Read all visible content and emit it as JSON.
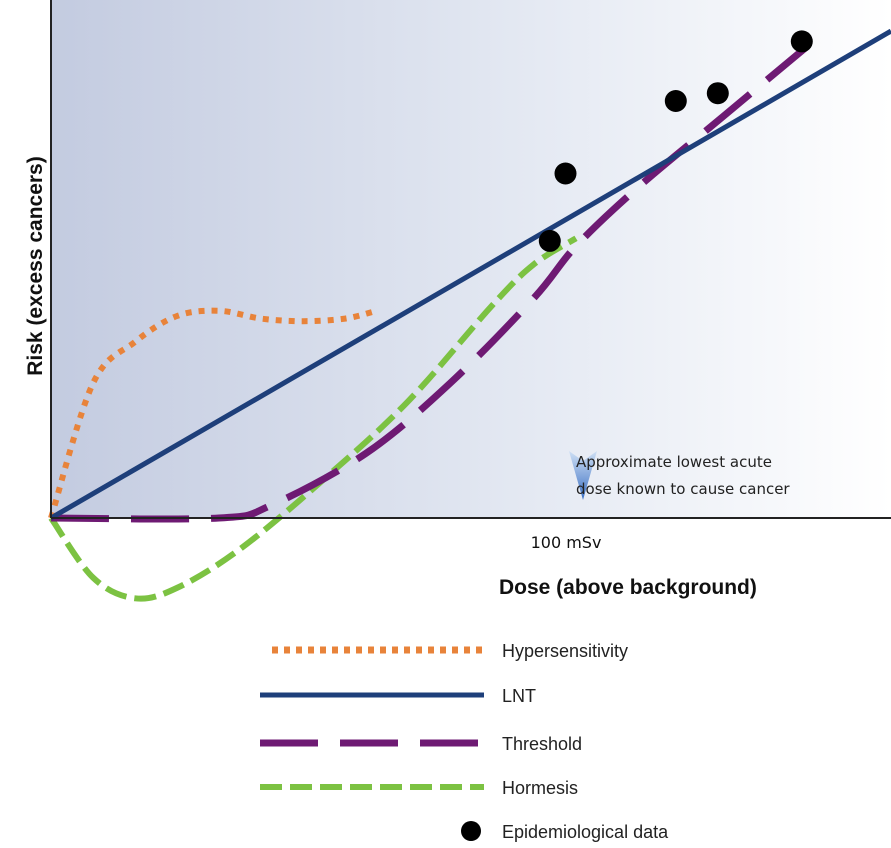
{
  "chart_data": {
    "type": "line",
    "title": "",
    "xlabel": "Dose (above background)",
    "ylabel": "Risk (excess cancers)",
    "x_ticks": [
      {
        "x": 100,
        "label": "100 mSv"
      }
    ],
    "xlim": [
      0,
      160
    ],
    "ylim": [
      -30,
      190
    ],
    "annotation": {
      "lines": [
        "Approximate lowest acute",
        "dose known to cause cancer"
      ],
      "x": 100,
      "marker": "down-arrow"
    },
    "series": [
      {
        "name": "Hypersensitivity",
        "style": "dotted",
        "color": "#e8833a",
        "x": [
          0,
          8,
          16,
          24,
          32,
          40,
          48,
          56,
          62
        ],
        "y": [
          0,
          52,
          68,
          78,
          80,
          77,
          76,
          77,
          80
        ]
      },
      {
        "name": "LNT",
        "style": "solid",
        "color": "#1e3f7a",
        "x": [
          0,
          160
        ],
        "y": [
          0,
          188
        ]
      },
      {
        "name": "Threshold",
        "style": "dashed",
        "color": "#6e1a73",
        "x": [
          0,
          32,
          42,
          60,
          76,
          92,
          100,
          112,
          128,
          144
        ],
        "y": [
          0,
          0,
          5,
          25,
          52,
          85,
          105,
          128,
          155,
          182
        ]
      },
      {
        "name": "Hormesis",
        "style": "dashed",
        "color": "#7cc242",
        "x": [
          0,
          8,
          16,
          24,
          36,
          52,
          68,
          84,
          92,
          100
        ],
        "y": [
          0,
          -23,
          -31,
          -27,
          -12,
          15,
          45,
          82,
          98,
          108
        ]
      },
      {
        "name": "Epidemiological data",
        "style": "points",
        "color": "#000000",
        "x": [
          95,
          98,
          119,
          127,
          143
        ],
        "y": [
          107,
          133,
          161,
          164,
          184
        ]
      }
    ],
    "legend": {
      "position": "bottom",
      "entries": [
        {
          "label": "Hypersensitivity",
          "style": "dotted",
          "color": "#e8833a"
        },
        {
          "label": "LNT",
          "style": "solid",
          "color": "#1e3f7a"
        },
        {
          "label": "Threshold",
          "style": "dashed",
          "color": "#6e1a73"
        },
        {
          "label": "Hormesis",
          "style": "dashed",
          "color": "#7cc242"
        },
        {
          "label": "Epidemiological data",
          "style": "points",
          "color": "#000000"
        }
      ]
    },
    "background": "gradient blue-to-white"
  }
}
